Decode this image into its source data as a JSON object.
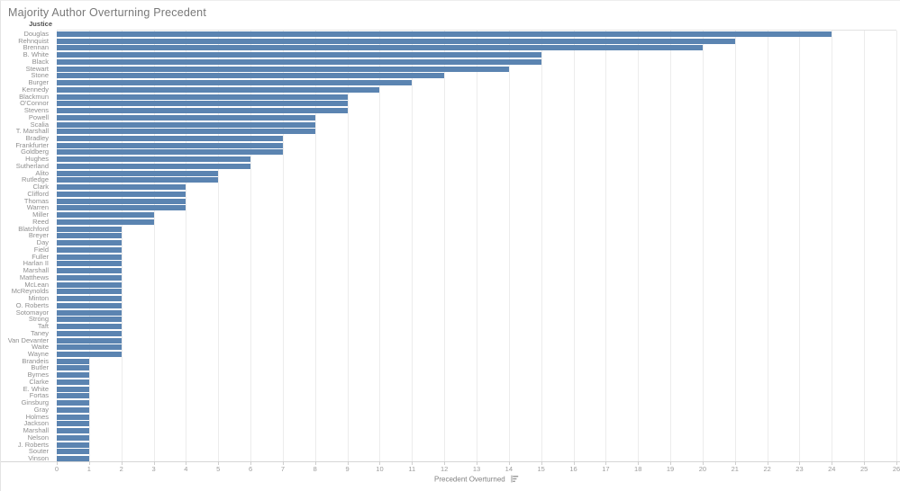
{
  "title": "Majority Author Overturning Precedent",
  "row_header": "Justice",
  "axis": {
    "label": "Precedent Overturned",
    "min": 0,
    "max": 26,
    "ticks": [
      0,
      1,
      2,
      3,
      4,
      5,
      6,
      7,
      8,
      9,
      10,
      11,
      12,
      13,
      14,
      15,
      16,
      17,
      18,
      19,
      20,
      21,
      22,
      23,
      24,
      25,
      26
    ],
    "sort_icon": "sort-descending"
  },
  "colors": {
    "bar": "#5b84b1",
    "grid": "#ececec",
    "axis_line": "#d6d6d6",
    "title_text": "#787878",
    "label_text": "#8f8f8f"
  },
  "chart_data": {
    "type": "bar",
    "orientation": "horizontal",
    "title": "Majority Author Overturning Precedent",
    "xlabel": "Precedent Overturned",
    "ylabel": "Justice",
    "xlim": [
      0,
      26
    ],
    "grid": true,
    "categories": [
      "Douglas",
      "Rehnquist",
      "Brennan",
      "B. White",
      "Black",
      "Stewart",
      "Stone",
      "Burger",
      "Kennedy",
      "Blackmun",
      "O'Connor",
      "Stevens",
      "Powell",
      "Scalia",
      "T. Marshall",
      "Bradley",
      "Frankfurter",
      "Goldberg",
      "Hughes",
      "Sutherland",
      "Alito",
      "Rutledge",
      "Clark",
      "Clifford",
      "Thomas",
      "Warren",
      "Miller",
      "Reed",
      "Blatchford",
      "Breyer",
      "Day",
      "Field",
      "Fuller",
      "Harlan II",
      "Marshall",
      "Matthews",
      "McLean",
      "McReynolds",
      "Minton",
      "O. Roberts",
      "Sotomayor",
      "Strong",
      "Taft",
      "Taney",
      "Van Devanter",
      "Waite",
      "Wayne",
      "Brandeis",
      "Butler",
      "Byrnes",
      "Clarke",
      "E. White",
      "Fortas",
      "Ginsburg",
      "Gray",
      "Holmes",
      "Jackson",
      "Marshall",
      "Nelson",
      "J. Roberts",
      "Souter",
      "Vinson"
    ],
    "values": [
      24,
      21,
      20,
      15,
      15,
      14,
      12,
      11,
      10,
      9,
      9,
      9,
      8,
      8,
      8,
      7,
      7,
      7,
      6,
      6,
      5,
      5,
      4,
      4,
      4,
      4,
      3,
      3,
      2,
      2,
      2,
      2,
      2,
      2,
      2,
      2,
      2,
      2,
      2,
      2,
      2,
      2,
      2,
      2,
      2,
      2,
      2,
      1,
      1,
      1,
      1,
      1,
      1,
      1,
      1,
      1,
      1,
      1,
      1,
      1,
      1,
      1
    ]
  }
}
